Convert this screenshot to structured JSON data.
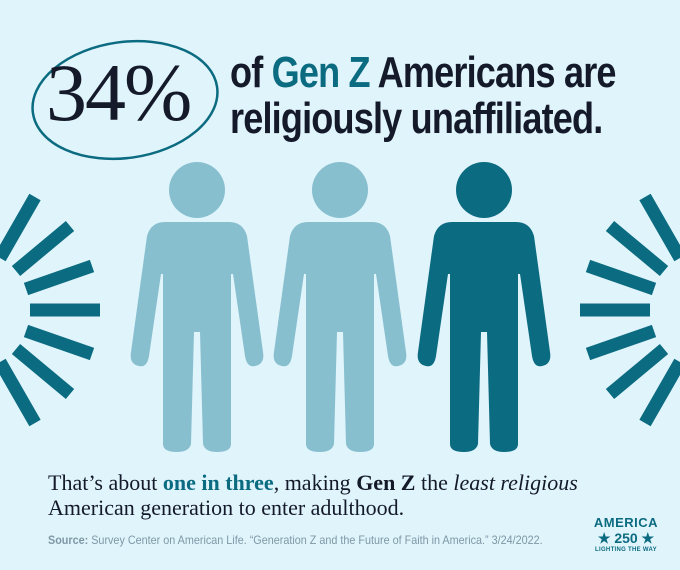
{
  "headline": {
    "stat": "34%",
    "parts": [
      "of",
      "Gen Z",
      "Americans are",
      "religiously unaffiliated."
    ]
  },
  "body": {
    "parts": [
      "That’s about ",
      "one in three",
      ", making ",
      "Gen Z",
      " the ",
      "least religious",
      "American generation to enter adulthood."
    ]
  },
  "source": {
    "label": "Source:",
    "text": "Survey Center on American Life. “Generation Z and the Future of Faith in America.” 3/24/2022."
  },
  "logo": {
    "name": "AMERICA",
    "number": "250",
    "tagline": "LIGHTING THE WAY"
  }
}
